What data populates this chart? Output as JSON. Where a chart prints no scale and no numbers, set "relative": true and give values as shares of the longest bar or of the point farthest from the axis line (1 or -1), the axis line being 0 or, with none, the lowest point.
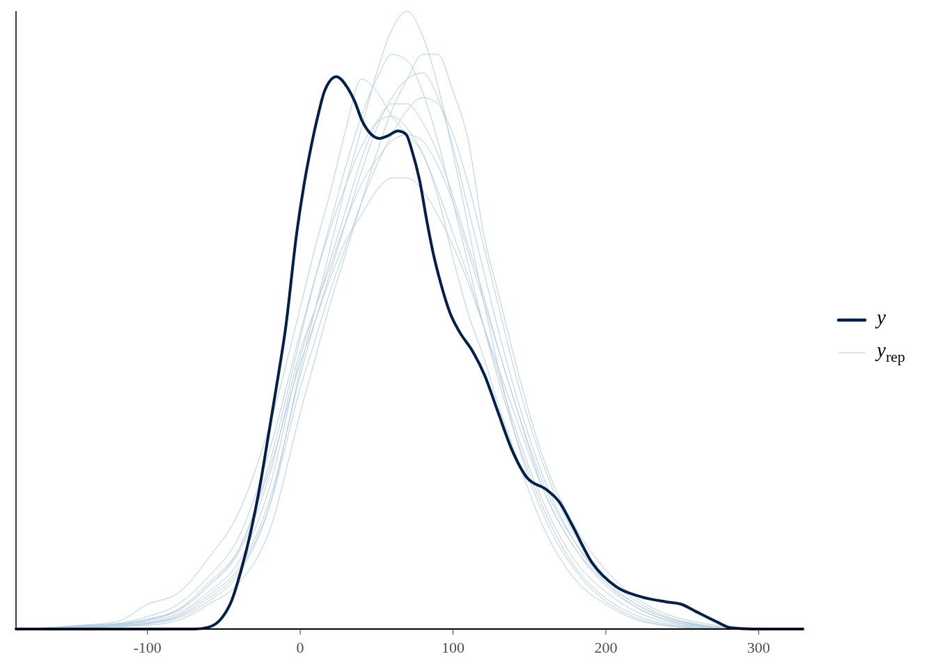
{
  "chart_data": {
    "type": "line",
    "relative": true,
    "legend": "right",
    "xlim": [
      -186,
      329
    ],
    "xticks": [
      -100,
      0,
      100,
      200,
      300
    ],
    "series": [
      {
        "name": "y",
        "color": "#011f4b",
        "x": [
          -186,
          -69,
          -60,
          -51,
          -44.9,
          -38.7,
          -32.6,
          -26.5,
          -20.4,
          -14.4,
          -9.8,
          -2.2,
          2.4,
          6.9,
          11.5,
          16.1,
          23.6,
          31.2,
          35.8,
          40.4,
          46.3,
          51.8,
          57.1,
          63.9,
          69.1,
          73.6,
          78.2,
          82.8,
          87.3,
          91.9,
          98.1,
          104.2,
          112.7,
          120.8,
          129,
          138.7,
          148.4,
          161.5,
          169.7,
          177.8,
          190.8,
          207.1,
          223.4,
          239.6,
          249.5,
          259.2,
          272.3,
          282,
          296.6,
          329
        ],
        "values": [
          0,
          0,
          0.003,
          0.019,
          0.046,
          0.095,
          0.155,
          0.23,
          0.32,
          0.41,
          0.483,
          0.643,
          0.718,
          0.778,
          0.83,
          0.872,
          0.894,
          0.875,
          0.853,
          0.823,
          0.801,
          0.794,
          0.798,
          0.806,
          0.801,
          0.77,
          0.725,
          0.661,
          0.605,
          0.56,
          0.511,
          0.481,
          0.45,
          0.41,
          0.354,
          0.289,
          0.245,
          0.225,
          0.205,
          0.169,
          0.108,
          0.068,
          0.052,
          0.044,
          0.04,
          0.028,
          0.012,
          0.002,
          0,
          0
        ]
      },
      {
        "name": "y$_{rep}$",
        "color": "#b3cde0",
        "x": [
          -170,
          -150,
          -120,
          -100,
          -80,
          -60,
          -40,
          -20,
          0,
          10,
          20,
          30,
          40,
          50,
          60,
          70,
          80,
          90,
          100,
          110,
          120,
          130,
          140,
          160,
          180,
          200,
          220,
          240,
          260,
          280,
          292
        ],
        "values": [
          0,
          0.005,
          0.012,
          0.04,
          0.058,
          0.115,
          0.19,
          0.33,
          0.52,
          0.62,
          0.71,
          0.81,
          0.89,
          0.87,
          0.83,
          0.8,
          0.77,
          0.7,
          0.6,
          0.51,
          0.44,
          0.36,
          0.29,
          0.16,
          0.08,
          0.04,
          0.015,
          0.005,
          0.001,
          0,
          0
        ]
      },
      {
        "color": "#b3cde0",
        "x": [
          -160,
          -150,
          -120,
          -100,
          -80,
          -60,
          -40,
          -20,
          0,
          10,
          20,
          30,
          40,
          50,
          60,
          70,
          80,
          90,
          100,
          110,
          120,
          130,
          140,
          160,
          180,
          200,
          220,
          240,
          260,
          280,
          290
        ],
        "values": [
          0,
          0.002,
          0.004,
          0.008,
          0.018,
          0.045,
          0.09,
          0.2,
          0.42,
          0.52,
          0.62,
          0.72,
          0.81,
          0.9,
          0.97,
          1,
          0.96,
          0.88,
          0.77,
          0.65,
          0.53,
          0.42,
          0.32,
          0.18,
          0.095,
          0.045,
          0.018,
          0.006,
          0.002,
          0,
          0
        ]
      },
      {
        "color": "#b3cde0",
        "x": [
          -175,
          -150,
          -120,
          -100,
          -80,
          -60,
          -40,
          -20,
          0,
          10,
          20,
          30,
          40,
          50,
          60,
          70,
          80,
          90,
          100,
          110,
          120,
          130,
          140,
          160,
          180,
          200,
          220,
          240,
          260,
          280,
          305
        ],
        "values": [
          0,
          0.004,
          0.008,
          0.016,
          0.032,
          0.075,
          0.13,
          0.26,
          0.43,
          0.5,
          0.57,
          0.63,
          0.67,
          0.71,
          0.73,
          0.73,
          0.71,
          0.67,
          0.62,
          0.56,
          0.49,
          0.42,
          0.35,
          0.22,
          0.13,
          0.075,
          0.04,
          0.018,
          0.007,
          0.002,
          0
        ]
      },
      {
        "color": "#b3cde0",
        "x": [
          -155,
          -150,
          -120,
          -100,
          -80,
          -60,
          -40,
          -20,
          0,
          10,
          20,
          30,
          40,
          50,
          60,
          70,
          80,
          90,
          100,
          110,
          120,
          130,
          140,
          160,
          180,
          200,
          220,
          240,
          260,
          280,
          318
        ],
        "values": [
          0,
          0.002,
          0.004,
          0.006,
          0.014,
          0.04,
          0.075,
          0.16,
          0.35,
          0.44,
          0.53,
          0.61,
          0.69,
          0.77,
          0.84,
          0.89,
          0.93,
          0.93,
          0.87,
          0.79,
          0.64,
          0.54,
          0.44,
          0.27,
          0.165,
          0.095,
          0.05,
          0.024,
          0.011,
          0.004,
          0
        ]
      },
      {
        "color": "#b3cde0",
        "x": [
          -165,
          -150,
          -120,
          -100,
          -80,
          -60,
          -40,
          -20,
          0,
          10,
          20,
          30,
          40,
          50,
          60,
          70,
          80,
          90,
          100,
          110,
          120,
          130,
          140,
          160,
          180,
          200,
          220,
          240,
          260,
          280,
          300
        ],
        "values": [
          0,
          0.004,
          0.007,
          0.014,
          0.03,
          0.07,
          0.125,
          0.25,
          0.45,
          0.52,
          0.6,
          0.68,
          0.76,
          0.82,
          0.85,
          0.85,
          0.82,
          0.77,
          0.7,
          0.62,
          0.54,
          0.45,
          0.37,
          0.22,
          0.13,
          0.07,
          0.035,
          0.015,
          0.006,
          0.002,
          0
        ]
      },
      {
        "color": "#b3cde0",
        "x": [
          -158,
          -150,
          -120,
          -100,
          -80,
          -60,
          -40,
          -20,
          0,
          10,
          20,
          30,
          40,
          50,
          60,
          70,
          80,
          90,
          100,
          110,
          120,
          130,
          140,
          160,
          180,
          200,
          220,
          240,
          260,
          280,
          302
        ],
        "values": [
          0,
          0.003,
          0.006,
          0.012,
          0.025,
          0.06,
          0.11,
          0.23,
          0.44,
          0.52,
          0.59,
          0.66,
          0.72,
          0.76,
          0.79,
          0.8,
          0.79,
          0.75,
          0.69,
          0.61,
          0.53,
          0.45,
          0.37,
          0.23,
          0.14,
          0.08,
          0.04,
          0.018,
          0.007,
          0.002,
          0
        ]
      },
      {
        "color": "#b3cde0",
        "x": [
          -162,
          -150,
          -120,
          -100,
          -80,
          -60,
          -40,
          -20,
          0,
          10,
          20,
          30,
          40,
          50,
          60,
          70,
          80,
          90,
          100,
          110,
          120,
          130,
          140,
          160,
          180,
          200,
          220,
          240,
          260,
          280,
          296
        ],
        "values": [
          0,
          0.003,
          0.005,
          0.01,
          0.022,
          0.055,
          0.1,
          0.21,
          0.41,
          0.5,
          0.58,
          0.66,
          0.74,
          0.81,
          0.86,
          0.89,
          0.9,
          0.86,
          0.78,
          0.68,
          0.58,
          0.48,
          0.39,
          0.24,
          0.14,
          0.075,
          0.035,
          0.014,
          0.005,
          0.001,
          0
        ]
      },
      {
        "color": "#b3cde0",
        "x": [
          -180,
          -150,
          -120,
          -100,
          -80,
          -60,
          -40,
          -20,
          0,
          10,
          20,
          30,
          40,
          50,
          60,
          70,
          80,
          90,
          100,
          110,
          120,
          130,
          140,
          160,
          180,
          200,
          220,
          240,
          260,
          280,
          294
        ],
        "values": [
          0,
          0.005,
          0.009,
          0.02,
          0.04,
          0.085,
          0.15,
          0.29,
          0.48,
          0.57,
          0.65,
          0.72,
          0.78,
          0.82,
          0.83,
          0.81,
          0.77,
          0.71,
          0.64,
          0.57,
          0.49,
          0.41,
          0.33,
          0.2,
          0.11,
          0.06,
          0.028,
          0.011,
          0.004,
          0.001,
          0
        ]
      },
      {
        "color": "#b3cde0",
        "x": [
          -168,
          -150,
          -120,
          -100,
          -80,
          -60,
          -40,
          -20,
          0,
          10,
          20,
          30,
          40,
          50,
          60,
          70,
          80,
          90,
          100,
          110,
          120,
          130,
          140,
          160,
          180,
          200,
          220,
          240,
          260,
          280,
          298
        ],
        "values": [
          0,
          0.003,
          0.007,
          0.015,
          0.03,
          0.07,
          0.13,
          0.27,
          0.47,
          0.57,
          0.66,
          0.75,
          0.83,
          0.89,
          0.93,
          0.92,
          0.87,
          0.79,
          0.69,
          0.59,
          0.49,
          0.4,
          0.32,
          0.19,
          0.1,
          0.05,
          0.022,
          0.008,
          0.003,
          0.001,
          0
        ]
      },
      {
        "color": "#b3cde0",
        "x": [
          -156,
          -150,
          -120,
          -100,
          -80,
          -60,
          -40,
          -20,
          0,
          10,
          20,
          30,
          40,
          50,
          60,
          70,
          80,
          90,
          100,
          110,
          120,
          130,
          140,
          160,
          180,
          200,
          220,
          240,
          260,
          280,
          310
        ],
        "values": [
          0,
          0.002,
          0.005,
          0.009,
          0.02,
          0.05,
          0.095,
          0.2,
          0.39,
          0.47,
          0.55,
          0.62,
          0.69,
          0.75,
          0.8,
          0.84,
          0.86,
          0.85,
          0.8,
          0.72,
          0.62,
          0.52,
          0.42,
          0.26,
          0.15,
          0.085,
          0.045,
          0.02,
          0.008,
          0.002,
          0
        ]
      }
    ]
  }
}
